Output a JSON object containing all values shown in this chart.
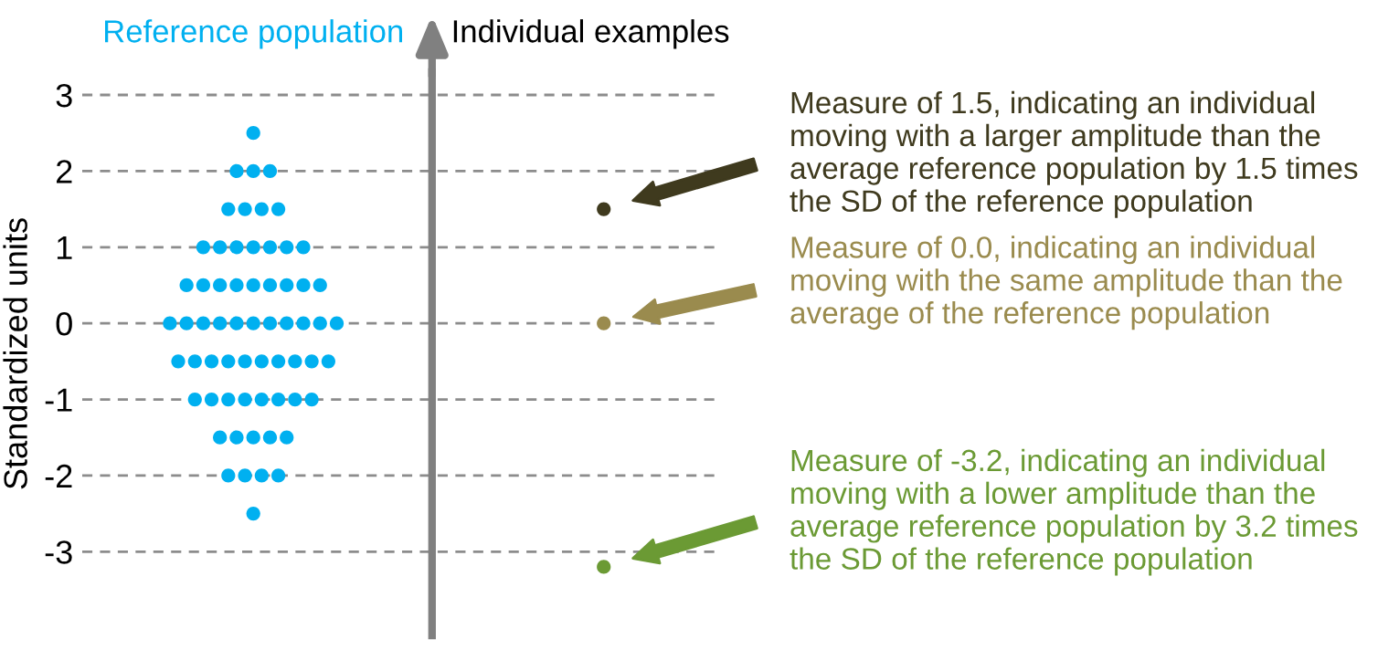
{
  "chart_data": {
    "type": "scatter",
    "ylabel": "Standardized units",
    "categories": [
      null,
      null,
      null,
      null,
      null,
      null,
      null,
      null,
      null,
      null,
      null,
      null,
      null,
      null,
      null,
      null,
      null,
      null,
      null,
      null,
      null,
      null,
      null,
      null,
      null,
      null,
      null,
      null,
      null,
      null,
      null,
      null,
      null,
      null,
      null,
      null,
      null,
      null,
      null,
      null,
      null,
      null,
      null,
      null,
      null,
      null,
      null,
      null,
      null,
      null,
      null,
      null,
      null,
      null,
      null,
      null,
      null,
      null,
      null,
      null,
      null,
      null,
      null,
      null,
      null,
      null,
      null,
      null,
      null,
      null,
      null,
      null,
      null,
      null,
      null,
      null
    ],
    "series": [
      {
        "name": "Reference population",
        "color": "#00b0f0",
        "values": [
          null,
          null,
          null,
          null,
          null,
          null,
          null,
          null,
          null,
          null,
          null,
          null,
          null,
          null,
          null,
          null,
          null,
          null,
          null,
          null,
          2.5,
          null,
          null,
          null,
          null,
          null,
          null,
          null,
          null,
          null,
          null,
          null,
          null,
          null,
          null,
          null,
          null,
          null,
          null,
          null,
          null,
          null,
          null,
          null,
          null,
          null,
          null,
          null,
          null,
          null,
          null,
          null,
          null,
          null,
          null,
          null,
          null,
          null,
          null,
          null,
          null,
          null,
          null,
          null,
          null,
          null,
          null,
          null,
          null,
          null,
          null,
          null,
          null,
          null,
          null,
          null
        ]
      },
      {
        "color": "#00b0f0",
        "values": [
          null,
          null,
          null,
          null,
          null,
          null,
          null,
          null,
          null,
          null,
          null,
          null,
          null,
          null,
          null,
          null,
          null,
          null,
          2,
          null,
          2,
          null,
          2,
          null,
          null,
          null,
          null,
          null,
          null,
          null,
          null,
          null,
          null,
          null,
          null,
          null,
          null,
          null,
          null,
          null,
          null,
          null,
          null,
          null,
          null,
          null,
          null,
          null,
          null,
          null,
          null,
          null,
          null,
          null,
          null,
          null,
          null,
          null,
          null,
          null,
          null,
          null,
          null,
          null,
          null,
          null,
          null,
          null,
          null,
          null,
          null,
          null,
          null,
          null,
          null,
          null
        ]
      },
      {
        "color": "#00b0f0",
        "values": [
          null,
          null,
          null,
          null,
          null,
          null,
          null,
          null,
          null,
          null,
          null,
          null,
          null,
          null,
          null,
          null,
          null,
          1.5,
          null,
          1.5,
          null,
          1.5,
          null,
          1.5,
          null,
          null,
          null,
          null,
          null,
          null,
          null,
          null,
          null,
          null,
          null,
          null,
          null,
          null,
          null,
          null,
          null,
          null,
          null,
          null,
          null,
          null,
          null,
          null,
          null,
          null,
          null,
          null,
          null,
          null,
          null,
          null,
          null,
          null,
          null,
          null,
          null,
          null,
          null,
          null,
          null,
          null,
          null,
          null,
          null,
          null,
          null,
          null,
          null,
          null,
          null,
          null
        ]
      },
      {
        "color": "#00b0f0",
        "values": [
          null,
          null,
          null,
          null,
          null,
          null,
          null,
          null,
          null,
          null,
          null,
          null,
          null,
          null,
          1,
          null,
          1,
          null,
          1,
          null,
          1,
          null,
          1,
          null,
          1,
          null,
          1,
          null,
          null,
          null,
          null,
          null,
          null,
          null,
          null,
          null,
          null,
          null,
          null,
          null,
          null,
          null,
          null,
          null,
          null,
          null,
          null,
          null,
          null,
          null,
          null,
          null,
          null,
          null,
          null,
          null,
          null,
          null,
          null,
          null,
          null,
          null,
          null,
          null,
          null,
          null,
          null,
          null,
          null,
          null,
          null,
          null,
          null,
          null,
          null,
          null
        ]
      },
      {
        "color": "#00b0f0",
        "values": [
          null,
          null,
          null,
          null,
          null,
          null,
          null,
          null,
          null,
          null,
          null,
          null,
          0.5,
          null,
          0.5,
          null,
          0.5,
          null,
          0.5,
          null,
          0.5,
          null,
          0.5,
          null,
          0.5,
          null,
          0.5,
          null,
          0.5,
          null,
          null,
          null,
          null,
          null,
          null,
          null,
          null,
          null,
          null,
          null,
          null,
          null,
          null,
          null,
          null,
          null,
          null,
          null,
          null,
          null,
          null,
          null,
          null,
          null,
          null,
          null,
          null,
          null,
          null,
          null,
          null,
          null,
          null,
          null,
          null,
          null,
          null,
          null,
          null,
          null,
          null,
          null,
          null,
          null,
          null,
          null
        ]
      },
      {
        "color": "#00b0f0",
        "values": [
          null,
          null,
          null,
          null,
          null,
          null,
          null,
          null,
          null,
          null,
          0,
          null,
          0,
          null,
          0,
          null,
          0,
          null,
          0,
          null,
          0,
          null,
          0,
          null,
          0,
          null,
          0,
          null,
          0,
          null,
          0,
          null,
          null,
          null,
          null,
          null,
          null,
          null,
          null,
          null,
          null,
          null,
          null,
          null,
          null,
          null,
          null,
          null,
          null,
          null,
          null,
          null,
          null,
          null,
          null,
          null,
          null,
          null,
          null,
          null,
          null,
          null,
          null,
          null,
          null,
          null,
          null,
          null,
          null,
          null,
          null,
          null,
          null,
          null,
          null,
          null
        ]
      },
      {
        "color": "#00b0f0",
        "values": [
          null,
          null,
          null,
          null,
          null,
          null,
          null,
          null,
          null,
          null,
          null,
          -0.5,
          null,
          -0.5,
          null,
          -0.5,
          null,
          -0.5,
          null,
          -0.5,
          null,
          -0.5,
          null,
          -0.5,
          null,
          -0.5,
          null,
          -0.5,
          null,
          -0.5,
          null,
          null,
          null,
          null,
          null,
          null,
          null,
          null,
          null,
          null,
          null,
          null,
          null,
          null,
          null,
          null,
          null,
          null,
          null,
          null,
          null,
          null,
          null,
          null,
          null,
          null,
          null,
          null,
          null,
          null,
          null,
          null,
          null,
          null,
          null,
          null,
          null,
          null,
          null,
          null,
          null,
          null,
          null,
          null,
          null,
          null
        ]
      },
      {
        "color": "#00b0f0",
        "values": [
          null,
          null,
          null,
          null,
          null,
          null,
          null,
          null,
          null,
          null,
          null,
          null,
          null,
          -1,
          null,
          -1,
          null,
          -1,
          null,
          -1,
          null,
          -1,
          null,
          -1,
          null,
          -1,
          null,
          -1,
          null,
          null,
          null,
          null,
          null,
          null,
          null,
          null,
          null,
          null,
          null,
          null,
          null,
          null,
          null,
          null,
          null,
          null,
          null,
          null,
          null,
          null,
          null,
          null,
          null,
          null,
          null,
          null,
          null,
          null,
          null,
          null,
          null,
          null,
          null,
          null,
          null,
          null,
          null,
          null,
          null,
          null,
          null,
          null,
          null,
          null,
          null,
          null
        ]
      },
      {
        "color": "#00b0f0",
        "values": [
          null,
          null,
          null,
          null,
          null,
          null,
          null,
          null,
          null,
          null,
          null,
          null,
          null,
          null,
          null,
          null,
          -1.5,
          null,
          -1.5,
          null,
          -1.5,
          null,
          -1.5,
          null,
          -1.5,
          null,
          null,
          null,
          null,
          null,
          null,
          null,
          null,
          null,
          null,
          null,
          null,
          null,
          null,
          null,
          null,
          null,
          null,
          null,
          null,
          null,
          null,
          null,
          null,
          null,
          null,
          null,
          null,
          null,
          null,
          null,
          null,
          null,
          null,
          null,
          null,
          null,
          null,
          null,
          null,
          null,
          null,
          null,
          null,
          null,
          null,
          null,
          null,
          null,
          null,
          null
        ]
      },
      {
        "color": "#00b0f0",
        "values": [
          null,
          null,
          null,
          null,
          null,
          null,
          null,
          null,
          null,
          null,
          null,
          null,
          null,
          null,
          null,
          null,
          null,
          -2,
          null,
          -2,
          null,
          -2,
          null,
          -2,
          null,
          null,
          null,
          null,
          null,
          null,
          null,
          null,
          null,
          null,
          null,
          null,
          null,
          null,
          null,
          null,
          null,
          null,
          null,
          null,
          null,
          null,
          null,
          null,
          null,
          null,
          null,
          null,
          null,
          null,
          null,
          null,
          null,
          null,
          null,
          null,
          null,
          null,
          null,
          null,
          null,
          null,
          null,
          null,
          null,
          null,
          null,
          null,
          null,
          null,
          null,
          null
        ]
      },
      {
        "color": "#00b0f0",
        "values": [
          null,
          null,
          null,
          null,
          null,
          null,
          null,
          null,
          null,
          null,
          null,
          null,
          null,
          null,
          null,
          null,
          null,
          null,
          null,
          null,
          -2.5,
          null,
          null,
          null,
          null,
          null,
          null,
          null,
          null,
          null,
          null,
          null,
          null,
          null,
          null,
          null,
          null,
          null,
          null,
          null,
          null,
          null,
          null,
          null,
          null,
          null,
          null,
          null,
          null,
          null,
          null,
          null,
          null,
          null,
          null,
          null,
          null,
          null,
          null,
          null,
          null,
          null,
          null,
          null,
          null,
          null,
          null,
          null,
          null,
          null,
          null,
          null,
          null,
          null,
          null,
          null
        ]
      },
      {
        "color": "#3f3a1e",
        "values": [
          null,
          null,
          null,
          null,
          null,
          null,
          null,
          null,
          null,
          null,
          null,
          null,
          null,
          null,
          null,
          null,
          null,
          null,
          null,
          null,
          null,
          null,
          null,
          null,
          null,
          null,
          null,
          null,
          null,
          null,
          null,
          null,
          null,
          null,
          null,
          null,
          null,
          null,
          null,
          null,
          null,
          null,
          null,
          null,
          null,
          null,
          null,
          null,
          null,
          null,
          null,
          null,
          null,
          null,
          null,
          null,
          null,
          null,
          null,
          null,
          null,
          null,
          1.5,
          null,
          null,
          null,
          null,
          null,
          null,
          null,
          null,
          null,
          null,
          null,
          null,
          null
        ]
      },
      {
        "color": "#9a8b4e",
        "values": [
          null,
          null,
          null,
          null,
          null,
          null,
          null,
          null,
          null,
          null,
          null,
          null,
          null,
          null,
          null,
          null,
          null,
          null,
          null,
          null,
          null,
          null,
          null,
          null,
          null,
          null,
          null,
          null,
          null,
          null,
          null,
          null,
          null,
          null,
          null,
          null,
          null,
          null,
          null,
          null,
          null,
          null,
          null,
          null,
          null,
          null,
          null,
          null,
          null,
          null,
          null,
          null,
          null,
          null,
          null,
          null,
          null,
          null,
          null,
          null,
          null,
          null,
          0,
          null,
          null,
          null,
          null,
          null,
          null,
          null,
          null,
          null,
          null,
          null,
          null,
          null
        ]
      },
      {
        "color": "#6b9a34",
        "values": [
          null,
          null,
          null,
          null,
          null,
          null,
          null,
          null,
          null,
          null,
          null,
          null,
          null,
          null,
          null,
          null,
          null,
          null,
          null,
          null,
          null,
          null,
          null,
          null,
          null,
          null,
          null,
          null,
          null,
          null,
          null,
          null,
          null,
          null,
          null,
          null,
          null,
          null,
          null,
          null,
          null,
          null,
          null,
          null,
          null,
          null,
          null,
          null,
          null,
          null,
          null,
          null,
          null,
          null,
          null,
          null,
          null,
          null,
          null,
          null,
          null,
          null,
          -3.2,
          null,
          null,
          null,
          null,
          null,
          null,
          null,
          null,
          null,
          null,
          null,
          null,
          null
        ]
      }
    ],
    "annotations": [
      "Individual examples",
      "Measure of 1.5, indicating an individual moving with a larger amplitude than the average reference population by 1.5 times the SD of the reference population",
      "Measure of 0.0, indicating an individual moving with the same amplitude than the average of the reference population",
      "Measure of -3.2, indicating an individual moving with a lower amplitude than the average reference population by 3.2 times the SD of the reference population"
    ],
    "ylim": [
      -4.1,
      3.3
    ],
    "yticks": [
      -3,
      -2,
      -1,
      0,
      1,
      2,
      3
    ],
    "grid": "y",
    "line_style": "dashed",
    "marker": "circle",
    "tick_labels": "y"
  }
}
